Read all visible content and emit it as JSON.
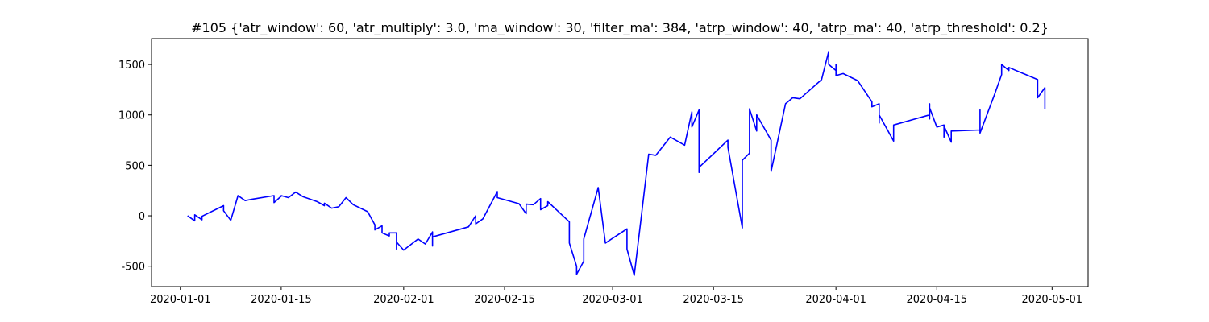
{
  "chart_data": {
    "type": "line",
    "title": "#105 {'atr_window': 60, 'atr_multiply': 3.0, 'ma_window': 30, 'filter_ma': 384, 'atrp_window': 40, 'atrp_ma': 40, 'atrp_threshold': 0.2}",
    "color": "#0000ff",
    "x": [
      "2020-01-02",
      "2020-01-03",
      "2020-01-03",
      "2020-01-04",
      "2020-01-04",
      "2020-01-07",
      "2020-01-07",
      "2020-01-08",
      "2020-01-09",
      "2020-01-10",
      "2020-01-11",
      "2020-01-14",
      "2020-01-14",
      "2020-01-15",
      "2020-01-15",
      "2020-01-16",
      "2020-01-17",
      "2020-01-18",
      "2020-01-20",
      "2020-01-21",
      "2020-01-21",
      "2020-01-22",
      "2020-01-23",
      "2020-01-24",
      "2020-01-25",
      "2020-01-27",
      "2020-01-28",
      "2020-01-28",
      "2020-01-29",
      "2020-01-29",
      "2020-01-30",
      "2020-01-30",
      "2020-01-31",
      "2020-01-31",
      "2020-01-31",
      "2020-02-01",
      "2020-02-03",
      "2020-02-04",
      "2020-02-05",
      "2020-02-05",
      "2020-02-05",
      "2020-02-10",
      "2020-02-11",
      "2020-02-11",
      "2020-02-12",
      "2020-02-14",
      "2020-02-14",
      "2020-02-17",
      "2020-02-18",
      "2020-02-18",
      "2020-02-19",
      "2020-02-20",
      "2020-02-20",
      "2020-02-20",
      "2020-02-21",
      "2020-02-21",
      "2020-02-24",
      "2020-02-24",
      "2020-02-25",
      "2020-02-25",
      "2020-02-26",
      "2020-02-26",
      "2020-02-28",
      "2020-02-29",
      "2020-03-03",
      "2020-03-03",
      "2020-03-04",
      "2020-03-05",
      "2020-03-06",
      "2020-03-07",
      "2020-03-09",
      "2020-03-11",
      "2020-03-12",
      "2020-03-12",
      "2020-03-13",
      "2020-03-13",
      "2020-03-13",
      "2020-03-13",
      "2020-03-17",
      "2020-03-17",
      "2020-03-19",
      "2020-03-19",
      "2020-03-20",
      "2020-03-20",
      "2020-03-20",
      "2020-03-21",
      "2020-03-21",
      "2020-03-23",
      "2020-03-23",
      "2020-03-25",
      "2020-03-26",
      "2020-03-27",
      "2020-03-30",
      "2020-03-31",
      "2020-03-31",
      "2020-04-01",
      "2020-04-01",
      "2020-04-01",
      "2020-04-02",
      "2020-04-04",
      "2020-04-06",
      "2020-04-06",
      "2020-04-07",
      "2020-04-07",
      "2020-04-07",
      "2020-04-09",
      "2020-04-09",
      "2020-04-14",
      "2020-04-14",
      "2020-04-14",
      "2020-04-14",
      "2020-04-15",
      "2020-04-16",
      "2020-04-16",
      "2020-04-16",
      "2020-04-17",
      "2020-04-17",
      "2020-04-21",
      "2020-04-21",
      "2020-04-21",
      "2020-04-23",
      "2020-04-24",
      "2020-04-24",
      "2020-04-25",
      "2020-04-25",
      "2020-04-29",
      "2020-04-29",
      "2020-04-29",
      "2020-04-30",
      "2020-04-30",
      "2020-04-30",
      "2020-04-30"
    ],
    "values": [
      0,
      -50,
      10,
      -40,
      -5,
      100,
      50,
      -45,
      200,
      150,
      165,
      200,
      130,
      195,
      200,
      180,
      235,
      190,
      140,
      100,
      125,
      75,
      90,
      180,
      110,
      40,
      -90,
      -140,
      -100,
      -170,
      -200,
      -170,
      -170,
      -330,
      -260,
      -340,
      -230,
      -280,
      -160,
      -300,
      -210,
      -110,
      0,
      -80,
      -30,
      240,
      180,
      120,
      20,
      115,
      110,
      170,
      80,
      60,
      100,
      140,
      -60,
      -270,
      -500,
      -580,
      -450,
      -230,
      280,
      -270,
      -130,
      -330,
      -590,
      0,
      610,
      600,
      780,
      700,
      1030,
      880,
      1050,
      760,
      430,
      480,
      750,
      680,
      -120,
      550,
      620,
      840,
      1060,
      840,
      1000,
      750,
      440,
      1110,
      1170,
      1160,
      1350,
      1630,
      1500,
      1440,
      1500,
      1390,
      1410,
      1340,
      1130,
      1080,
      1110,
      920,
      1000,
      740,
      900,
      1000,
      1110,
      960,
      1070,
      880,
      900,
      780,
      890,
      730,
      840,
      850,
      1050,
      820,
      1200,
      1400,
      1500,
      1440,
      1470,
      1350,
      1260,
      1170,
      1270,
      1080,
      1130,
      1060
    ],
    "xlim": [
      "2019-12-28",
      "2020-05-06"
    ],
    "xticks": [
      "2020-01-01",
      "2020-01-15",
      "2020-02-01",
      "2020-02-15",
      "2020-03-01",
      "2020-03-15",
      "2020-04-01",
      "2020-04-15",
      "2020-05-01"
    ],
    "ylim": [
      -702,
      1756
    ],
    "yticks": [
      -500,
      0,
      500,
      1000,
      1500
    ]
  }
}
